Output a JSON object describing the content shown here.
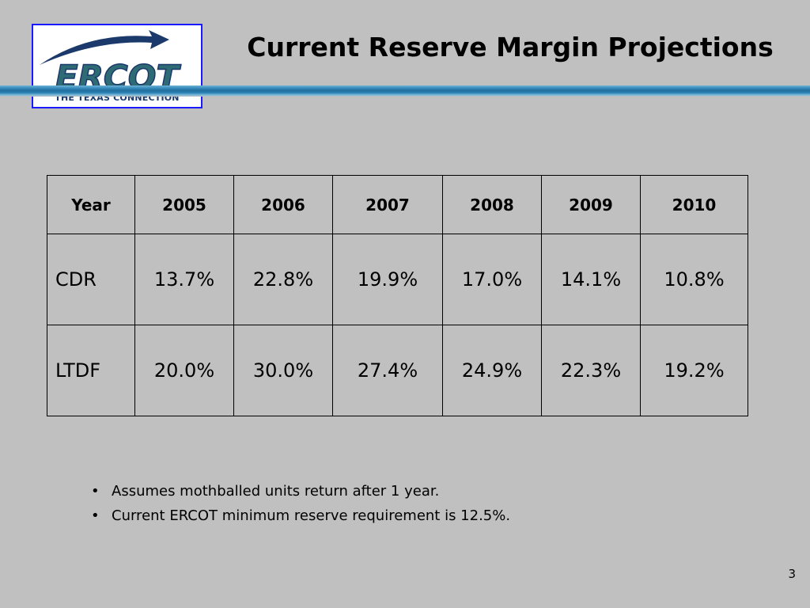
{
  "logo": {
    "wordmark": "ERCOT",
    "tagline": "THE TEXAS CONNECTION"
  },
  "title": "Current Reserve Margin Projections",
  "table": {
    "header": [
      "Year",
      "2005",
      "2006",
      "2007",
      "2008",
      "2009",
      "2010"
    ],
    "rows": [
      [
        "CDR",
        "13.7%",
        "22.8%",
        "19.9%",
        "17.0%",
        "14.1%",
        "10.8%"
      ],
      [
        "LTDF",
        "20.0%",
        "30.0%",
        "27.4%",
        "24.9%",
        "22.3%",
        "19.2%"
      ]
    ]
  },
  "notes": [
    "Assumes mothballed units return after 1 year.",
    "Current ERCOT minimum reserve requirement is 12.5%."
  ],
  "page_number": "3",
  "colors": {
    "background": "#c0c0c0",
    "logo_border": "#1a1aff",
    "logo_teal": "#2e6b74",
    "logo_navy": "#1b3a6b",
    "title_rule": "#1f6e9e"
  }
}
